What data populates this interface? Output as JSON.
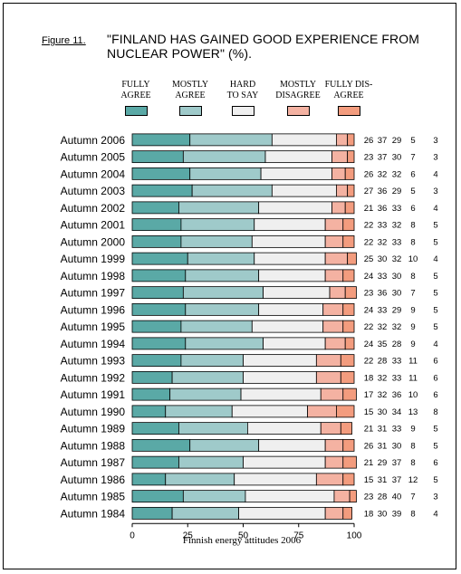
{
  "figure": {
    "label": "Figure 11.",
    "title": "\"FINLAND HAS GAINED GOOD EXPERIENCE FROM NUCLEAR POWER\" (%)."
  },
  "legend": [
    {
      "line1": "FULLY",
      "line2": "AGREE",
      "color": "#5AA9A6"
    },
    {
      "line1": "MOSTLY",
      "line2": "AGREE",
      "color": "#9FCACA"
    },
    {
      "line1": "HARD",
      "line2": "TO SAY",
      "color": "#EFEFEF"
    },
    {
      "line1": "MOSTLY",
      "line2": "DISAGREE",
      "color": "#F4B2A2"
    },
    {
      "line1": "FULLY DIS-",
      "line2": "AGREE",
      "color": "#F39C7E"
    }
  ],
  "chart_data": {
    "type": "bar",
    "orientation": "horizontal",
    "stacked": true,
    "categories": [
      "Autumn 2006",
      "Autumn 2005",
      "Autumn 2004",
      "Autumn 2003",
      "Autumn 2002",
      "Autumn 2001",
      "Autumn 2000",
      "Autumn 1999",
      "Autumn 1998",
      "Autumn 1997",
      "Autumn 1996",
      "Autumn 1995",
      "Autumn 1994",
      "Autumn 1993",
      "Autumn 1992",
      "Autumn 1991",
      "Autumn 1990",
      "Autumn 1989",
      "Autumn 1988",
      "Autumn 1987",
      "Autumn 1986",
      "Autumn 1985",
      "Autumn 1984"
    ],
    "series": [
      {
        "name": "FULLY AGREE",
        "color": "#5AA9A6",
        "values": [
          26,
          23,
          26,
          27,
          21,
          22,
          22,
          25,
          24,
          23,
          24,
          22,
          24,
          22,
          18,
          17,
          15,
          21,
          26,
          21,
          15,
          23,
          18
        ]
      },
      {
        "name": "MOSTLY AGREE",
        "color": "#9FCACA",
        "values": [
          37,
          37,
          32,
          36,
          36,
          33,
          32,
          30,
          33,
          36,
          33,
          32,
          35,
          28,
          32,
          32,
          30,
          31,
          31,
          29,
          31,
          28,
          30
        ]
      },
      {
        "name": "HARD TO SAY",
        "color": "#EFEFEF",
        "values": [
          29,
          30,
          32,
          29,
          33,
          32,
          33,
          32,
          30,
          30,
          29,
          32,
          28,
          33,
          33,
          36,
          34,
          33,
          30,
          37,
          37,
          40,
          39
        ]
      },
      {
        "name": "MOSTLY DISAGREE",
        "color": "#F4B2A2",
        "values": [
          5,
          7,
          6,
          5,
          6,
          8,
          8,
          10,
          8,
          7,
          9,
          9,
          9,
          11,
          11,
          10,
          13,
          9,
          8,
          8,
          12,
          7,
          8
        ]
      },
      {
        "name": "FULLY DISAGREE",
        "color": "#F39C7E",
        "values": [
          3,
          3,
          4,
          3,
          4,
          5,
          5,
          4,
          5,
          5,
          5,
          5,
          4,
          6,
          6,
          6,
          8,
          5,
          5,
          6,
          5,
          3,
          4
        ]
      }
    ],
    "xlim": [
      0,
      100
    ],
    "xticks": [
      0,
      25,
      50,
      75,
      100
    ],
    "xlabel": "Finnish energy attitudes 2006"
  }
}
